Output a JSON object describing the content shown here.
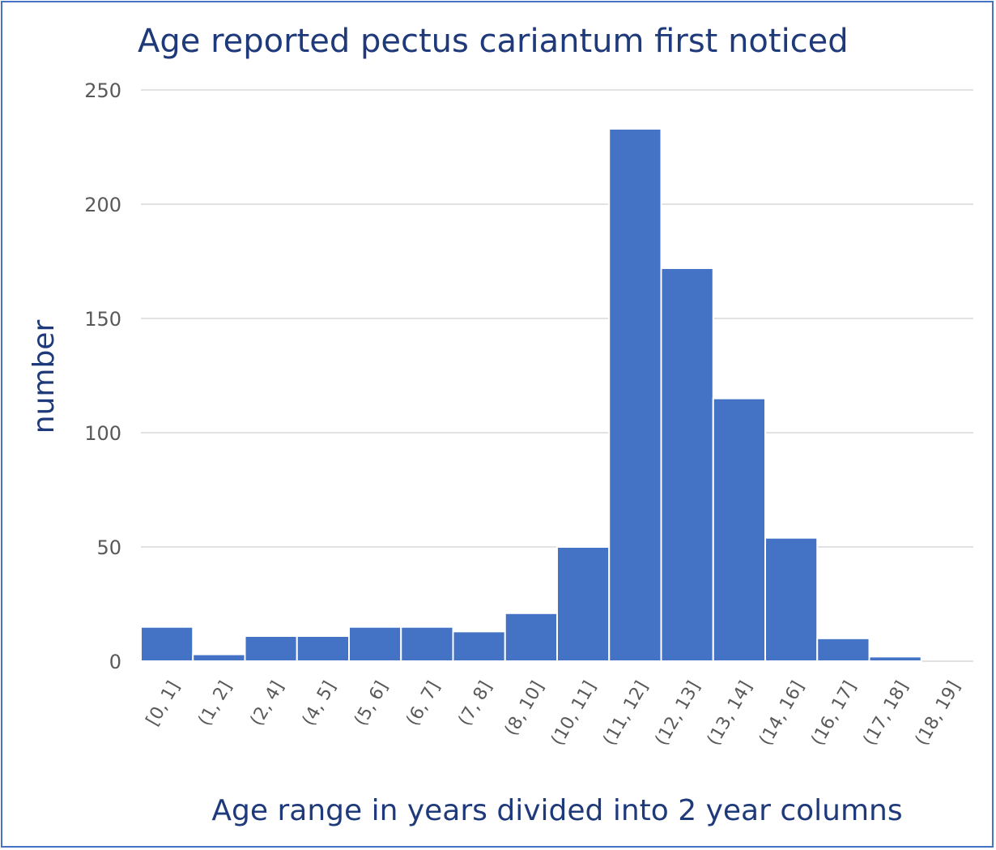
{
  "chart_data": {
    "type": "bar",
    "title": "Age reported pectus cariantum first noticed",
    "xlabel": "Age range in years divided into 2 year columns",
    "ylabel": "number",
    "categories": [
      "[0, 1]",
      "(1, 2]",
      "(2, 4]",
      "(4, 5]",
      "(5, 6]",
      "(6, 7]",
      "(7, 8]",
      "(8, 10]",
      "(10, 11]",
      "(11, 12]",
      "(12, 13]",
      "(13, 14]",
      "(14, 16]",
      "(16, 17]",
      "(17, 18]",
      "(18, 19]"
    ],
    "values": [
      15,
      3,
      11,
      11,
      15,
      15,
      13,
      21,
      50,
      233,
      172,
      115,
      54,
      10,
      2,
      0
    ],
    "ylim": [
      0,
      250
    ],
    "yticks": [
      "0",
      "50",
      "100",
      "150",
      "200",
      "250"
    ],
    "grid": true,
    "bar_color": "#4472c4",
    "border_color": "#4472c4",
    "title_color": "#1f3a7a"
  }
}
